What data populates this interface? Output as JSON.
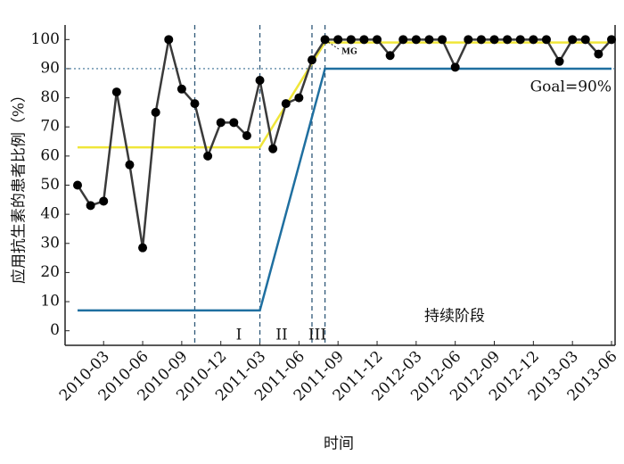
{
  "chart_data": {
    "type": "line",
    "y_label": "应用抗生素的患者比例（%）",
    "x_label": "时间",
    "categories": [
      null,
      null,
      "2010-03",
      null,
      null,
      "2010-06",
      null,
      null,
      "2010-09",
      null,
      null,
      "2010-12",
      null,
      null,
      "2011-03",
      null,
      null,
      "2011-06",
      null,
      null,
      "2011-09",
      null,
      null,
      "2011-12",
      null,
      null,
      "2012-03",
      null,
      null,
      "2012-06",
      null,
      null,
      "2012-09",
      null,
      null,
      "2012-12",
      null,
      null,
      "2013-03",
      null,
      null,
      "2013-06"
    ],
    "series": [
      {
        "color": "#f0e63a",
        "markers": false,
        "values": [
          63,
          63,
          63,
          63,
          63,
          63,
          63,
          63,
          63,
          63,
          63,
          63,
          63,
          63,
          63,
          70.2,
          77.4,
          84.6,
          91.8,
          99,
          99,
          99,
          99,
          99,
          99,
          99,
          99,
          99,
          99,
          99,
          99,
          99,
          99,
          99,
          99,
          99,
          99,
          99,
          99,
          99,
          99,
          99
        ]
      },
      {
        "color": "#1f6fa0",
        "markers": false,
        "values": [
          7,
          7,
          7,
          7,
          7,
          7,
          7,
          7,
          7,
          7,
          7,
          7,
          7,
          7,
          7,
          23.6,
          40.2,
          56.8,
          73.4,
          90,
          90,
          90,
          90,
          90,
          90,
          90,
          90,
          90,
          90,
          90,
          90,
          90,
          90,
          90,
          90,
          90,
          90,
          90,
          90,
          90,
          90,
          90
        ]
      },
      {
        "color": "#3a3a3a",
        "markers": true,
        "values": [
          50,
          43,
          44.5,
          82,
          57,
          28.5,
          75,
          100,
          83,
          78,
          60,
          71.5,
          71.5,
          67,
          86,
          62.5,
          78,
          80,
          93,
          100,
          100,
          100,
          100,
          100,
          94.5,
          100,
          100,
          100,
          100,
          90.5,
          100,
          100,
          100,
          100,
          100,
          100,
          100,
          92.5,
          100,
          100,
          95,
          100
        ]
      }
    ],
    "ylim": [
      -5,
      105
    ],
    "yticks": [
      0,
      10,
      20,
      30,
      40,
      50,
      60,
      70,
      80,
      90,
      100
    ],
    "goal_line": 90,
    "phase_boundaries": [
      9,
      14,
      18,
      19
    ],
    "annotations": {
      "goal": "Goal=90%",
      "mg": "MG",
      "phase1": "I",
      "phase2": "II",
      "phase3": "III",
      "sustain": "持续阶段"
    }
  }
}
